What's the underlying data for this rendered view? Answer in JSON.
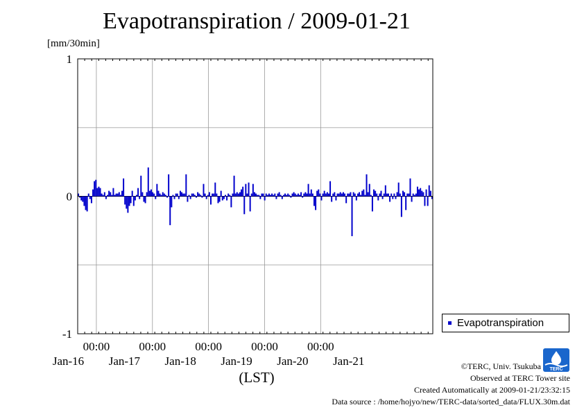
{
  "header": {
    "title": "Evapotranspiration / 2009-01-21",
    "unit": "[mm/30min]"
  },
  "xaxis": {
    "time_labels": [
      "00:00",
      "00:00",
      "00:00",
      "00:00",
      "00:00"
    ],
    "date_labels": [
      "Jan-16",
      "Jan-17",
      "Jan-18",
      "Jan-19",
      "Jan-20",
      "Jan-21"
    ],
    "label": "(LST)"
  },
  "legend": {
    "label": "Evapotranspiration",
    "color": "#0000cc"
  },
  "footer": {
    "credit": "©TERC, Univ. Tsukuba",
    "site": "Observed at TERC Tower site",
    "created": "Created Automatically at 2009-01-21/23:32:15",
    "source": "Data source : /home/hojyo/new/TERC-data/sorted_data/FLUX.30m.dat"
  },
  "logo": {
    "text": "TERC"
  },
  "chart_data": {
    "type": "bar",
    "title": "Evapotranspiration / 2009-01-21",
    "ylabel": "[mm/30min]",
    "xlabel": "(LST)",
    "ylim": [
      -1,
      1
    ],
    "yticks": [
      -1,
      0,
      1
    ],
    "grid": true,
    "legend_position": "right-bottom",
    "x_start": "2009-01-15T16:00",
    "x_end": "2009-01-21T24:00",
    "interval": "30min",
    "series": [
      {
        "name": "Evapotranspiration",
        "color": "#0000cc",
        "values": [
          0.02,
          -0.01,
          -0.03,
          -0.04,
          -0.07,
          -0.1,
          -0.11,
          0.02,
          -0.02,
          -0.05,
          0.05,
          0.11,
          0.12,
          0.06,
          0.07,
          0.06,
          0.02,
          0.01,
          0.03,
          -0.02,
          0.01,
          0.04,
          0.03,
          0.01,
          0.06,
          0.01,
          0.02,
          0.02,
          0.03,
          0.01,
          0.04,
          0.13,
          -0.06,
          -0.09,
          -0.12,
          -0.07,
          -0.05,
          0.04,
          -0.07,
          -0.03,
          0.01,
          0.06,
          -0.02,
          0.15,
          0.03,
          -0.04,
          -0.05,
          0.03,
          0.21,
          0.04,
          0.05,
          0.03,
          0.02,
          -0.02,
          0.09,
          0.04,
          0.02,
          0.01,
          0.03,
          0.02,
          0.01,
          -0.01,
          0.16,
          -0.21,
          -0.08,
          0.01,
          -0.02,
          0.02,
          0.02,
          -0.02,
          0.04,
          0.03,
          0.02,
          0.02,
          0.16,
          -0.04,
          0.01,
          -0.02,
          0.02,
          0.02,
          0.01,
          -0.01,
          0.03,
          0.02,
          0.01,
          -0.01,
          0.09,
          0.02,
          -0.02,
          0.01,
          0.03,
          -0.06,
          0.02,
          0.02,
          0.1,
          0.02,
          -0.05,
          -0.04,
          0.04,
          -0.03,
          -0.02,
          0.01,
          -0.03,
          0.02,
          0.01,
          -0.08,
          0.02,
          0.15,
          0.02,
          0.03,
          0.02,
          0.03,
          0.05,
          0.07,
          -0.13,
          0.09,
          0.02,
          0.1,
          -0.11,
          0.02,
          0.09,
          0.03,
          0.02,
          0.01,
          0.01,
          -0.02,
          0.02,
          0.02,
          -0.03,
          0.02,
          0.01,
          0.02,
          0.01,
          0.02,
          0.01,
          0.02,
          -0.02,
          0.02,
          0.03,
          0.01,
          -0.02,
          0.01,
          0.02,
          0.01,
          0.02,
          0.01,
          -0.01,
          0.02,
          0.03,
          0.02,
          0.01,
          0.02,
          0.01,
          0.03,
          -0.01,
          0.02,
          0.03,
          0.02,
          0.09,
          0.02,
          0.05,
          0.02,
          -0.07,
          -0.1,
          0.04,
          0.05,
          0.02,
          -0.03,
          0.02,
          0.04,
          0.02,
          0.03,
          0.02,
          0.11,
          -0.04,
          0.02,
          0.03,
          -0.03,
          0.02,
          0.02,
          0.03,
          0.02,
          0.03,
          0.02,
          -0.05,
          0.02,
          0.02,
          0.03,
          -0.29,
          0.03,
          0.02,
          -0.03,
          0.02,
          0.03,
          0.01,
          0.04,
          0.05,
          0.01,
          0.16,
          0.03,
          0.09,
          0.01,
          -0.11,
          0.05,
          0.04,
          0.02,
          -0.03,
          0.02,
          0.04,
          -0.02,
          0.02,
          0.08,
          0.02,
          0.02,
          -0.04,
          0.02,
          -0.02,
          0.02,
          -0.02,
          0.03,
          0.1,
          0.02,
          -0.15,
          0.04,
          0.03,
          -0.1,
          0.02,
          0.02,
          0.13,
          -0.04,
          0.02,
          0.01,
          0.02,
          0.07,
          0.05,
          0.06,
          0.04,
          0.03,
          -0.07,
          0.05,
          -0.07,
          0.08,
          0.04,
          -0.02
        ]
      }
    ]
  }
}
